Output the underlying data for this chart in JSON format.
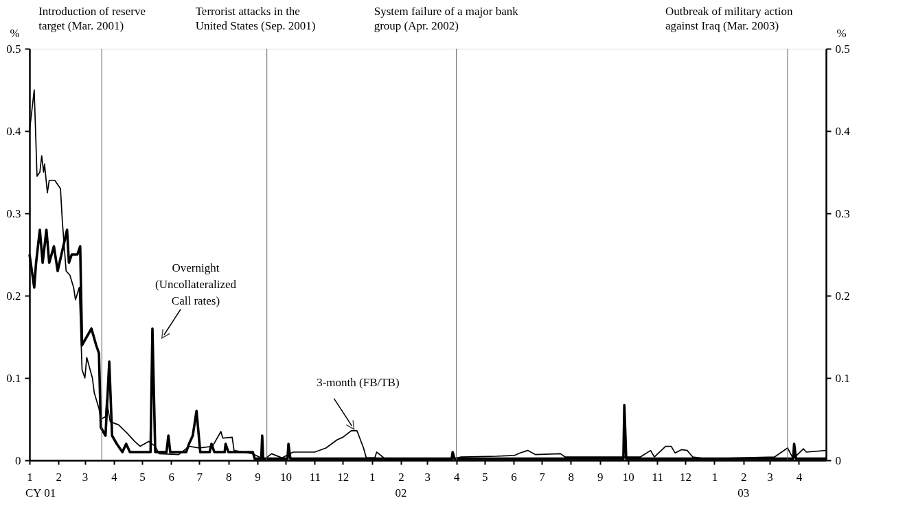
{
  "chart_data": {
    "type": "line",
    "ylabel": "%",
    "y2label": "%",
    "xlim": [
      "2001-01-01",
      "2003-04-30"
    ],
    "xticks": [
      {
        "value": "2001-01-01",
        "label": "1"
      },
      {
        "value": "2001-02-01",
        "label": "2"
      },
      {
        "value": "2001-03-01",
        "label": "3"
      },
      {
        "value": "2001-04-01",
        "label": "4"
      },
      {
        "value": "2001-05-01",
        "label": "5"
      },
      {
        "value": "2001-06-01",
        "label": "6"
      },
      {
        "value": "2001-07-01",
        "label": "7"
      },
      {
        "value": "2001-08-01",
        "label": "8"
      },
      {
        "value": "2001-09-01",
        "label": "9"
      },
      {
        "value": "2001-10-01",
        "label": "10"
      },
      {
        "value": "2001-11-01",
        "label": "11"
      },
      {
        "value": "2001-12-01",
        "label": "12"
      },
      {
        "value": "2002-01-01",
        "label": "1"
      },
      {
        "value": "2002-02-01",
        "label": "2"
      },
      {
        "value": "2002-03-01",
        "label": "3"
      },
      {
        "value": "2002-04-01",
        "label": "4"
      },
      {
        "value": "2002-05-01",
        "label": "5"
      },
      {
        "value": "2002-06-01",
        "label": "6"
      },
      {
        "value": "2002-07-01",
        "label": "7"
      },
      {
        "value": "2002-08-01",
        "label": "8"
      },
      {
        "value": "2002-09-01",
        "label": "9"
      },
      {
        "value": "2002-10-01",
        "label": "10"
      },
      {
        "value": "2002-11-01",
        "label": "11"
      },
      {
        "value": "2002-12-01",
        "label": "12"
      },
      {
        "value": "2003-01-01",
        "label": "1"
      },
      {
        "value": "2003-02-01",
        "label": "2"
      },
      {
        "value": "2003-03-01",
        "label": "3"
      },
      {
        "value": "2003-04-01",
        "label": "4"
      }
    ],
    "ylim": [
      0,
      0.5
    ],
    "yticks": [
      0,
      0.1,
      0.2,
      0.3,
      0.4,
      0.5
    ],
    "y2lim": [
      0,
      0.5
    ],
    "y2ticks": [
      0,
      0.1,
      0.2,
      0.3,
      0.4,
      0.5
    ],
    "series": [
      {
        "color": "#000000",
        "x": [
          "2001-01-01",
          "2001-01-06",
          "2001-01-08",
          "2001-01-12",
          "2001-01-15",
          "2001-01-19",
          "2001-01-22",
          "2001-01-27",
          "2001-01-31",
          "2001-02-04",
          "2001-02-10",
          "2001-02-12",
          "2001-02-15",
          "2001-02-21",
          "2001-02-24",
          "2001-02-26",
          "2001-03-03",
          "2001-03-08",
          "2001-03-13",
          "2001-03-16",
          "2001-03-18",
          "2001-03-23",
          "2001-03-27",
          "2001-03-30",
          "2001-04-04",
          "2001-04-10",
          "2001-04-14",
          "2001-04-18",
          "2001-04-29",
          "2001-05-10",
          "2001-05-12",
          "2001-05-15",
          "2001-05-27",
          "2001-05-29",
          "2001-05-31",
          "2001-06-17",
          "2001-06-20",
          "2001-06-24",
          "2001-06-28",
          "2001-07-02",
          "2001-07-12",
          "2001-07-14",
          "2001-07-17",
          "2001-07-28",
          "2001-07-29",
          "2001-08-01",
          "2001-08-27",
          "2001-08-29",
          "2001-09-05",
          "2001-09-06",
          "2001-09-07",
          "2001-10-03",
          "2001-10-04",
          "2001-10-06",
          "2002-03-27",
          "2002-03-28",
          "2002-03-30",
          "2002-09-26",
          "2002-09-27",
          "2002-09-29",
          "2003-03-26",
          "2003-03-27",
          "2003-03-29",
          "2003-04-30"
        ],
        "values": [
          0.25,
          0.21,
          0.24,
          0.28,
          0.24,
          0.28,
          0.24,
          0.26,
          0.23,
          0.25,
          0.28,
          0.24,
          0.25,
          0.25,
          0.26,
          0.14,
          0.15,
          0.16,
          0.14,
          0.13,
          0.04,
          0.03,
          0.12,
          0.03,
          0.02,
          0.01,
          0.02,
          0.01,
          0.01,
          0.01,
          0.16,
          0.01,
          0.01,
          0.03,
          0.01,
          0.01,
          0.02,
          0.03,
          0.06,
          0.01,
          0.01,
          0.02,
          0.01,
          0.01,
          0.02,
          0.01,
          0.01,
          0.002,
          0.002,
          0.03,
          0.002,
          0.002,
          0.02,
          0.002,
          0.002,
          0.01,
          0.002,
          0.002,
          0.067,
          0.002,
          0.002,
          0.02,
          0.002,
          0.002
        ]
      },
      {
        "color": "#000000",
        "x": [
          "2001-01-01",
          "2001-01-06",
          "2001-01-09",
          "2001-01-12",
          "2001-01-14",
          "2001-01-16",
          "2001-01-17",
          "2001-01-20",
          "2001-01-22",
          "2001-01-28",
          "2001-02-03",
          "2001-02-05",
          "2001-02-09",
          "2001-02-13",
          "2001-02-17",
          "2001-02-19",
          "2001-02-23",
          "2001-02-26",
          "2001-03-01",
          "2001-03-03",
          "2001-03-09",
          "2001-03-11",
          "2001-03-16",
          "2001-03-18",
          "2001-03-23",
          "2001-03-24",
          "2001-03-28",
          "2001-04-06",
          "2001-04-15",
          "2001-04-23",
          "2001-04-29",
          "2001-05-08",
          "2001-05-15",
          "2001-05-19",
          "2001-06-09",
          "2001-06-20",
          "2001-07-01",
          "2001-07-15",
          "2001-07-24",
          "2001-07-26",
          "2001-08-05",
          "2001-08-07",
          "2001-08-27",
          "2001-09-08",
          "2001-09-16",
          "2001-09-27",
          "2001-10-09",
          "2001-11-01",
          "2001-11-13",
          "2001-11-25",
          "2001-12-01",
          "2001-12-10",
          "2001-12-16",
          "2001-12-23",
          "2001-12-26",
          "2002-01-04",
          "2002-01-06",
          "2002-01-16",
          "2002-03-25",
          "2002-04-06",
          "2002-05-14",
          "2002-06-02",
          "2002-06-08",
          "2002-06-16",
          "2002-06-24",
          "2002-07-21",
          "2002-07-26",
          "2002-10-14",
          "2002-10-25",
          "2002-10-29",
          "2002-11-10",
          "2002-11-16",
          "2002-11-20",
          "2002-11-27",
          "2002-12-03",
          "2002-12-09",
          "2002-12-24",
          "2003-03-06",
          "2003-03-20",
          "2003-03-26",
          "2003-04-06",
          "2003-04-09",
          "2003-04-30"
        ],
        "values": [
          0.4,
          0.45,
          0.345,
          0.35,
          0.37,
          0.35,
          0.36,
          0.325,
          0.34,
          0.34,
          0.33,
          0.29,
          0.23,
          0.225,
          0.21,
          0.195,
          0.21,
          0.11,
          0.1,
          0.125,
          0.1,
          0.082,
          0.063,
          0.05,
          0.053,
          0.073,
          0.047,
          0.043,
          0.033,
          0.023,
          0.017,
          0.023,
          0.017,
          0.008,
          0.007,
          0.017,
          0.015,
          0.017,
          0.035,
          0.027,
          0.028,
          0.012,
          0.008,
          0.001,
          0.008,
          0.003,
          0.01,
          0.01,
          0.015,
          0.025,
          0.028,
          0.036,
          0.036,
          0.015,
          0.003,
          0.003,
          0.01,
          0.001,
          0.001,
          0.004,
          0.005,
          0.006,
          0.009,
          0.012,
          0.007,
          0.008,
          0.004,
          0.004,
          0.012,
          0.004,
          0.017,
          0.017,
          0.009,
          0.013,
          0.012,
          0.004,
          0.002,
          0.004,
          0.015,
          0.002,
          0.014,
          0.01,
          0.012
        ]
      }
    ],
    "ref_lines": [
      {
        "axis": "x",
        "value": "2001-03-19",
        "label": "Introduction of reserve\ntarget  (Mar. 2001)",
        "color": "#606060"
      },
      {
        "axis": "x",
        "value": "2001-09-11",
        "label": "Terrorist attacks in the\nUnited States  (Sep. 2001)",
        "color": "#606060"
      },
      {
        "axis": "x",
        "value": "2002-04-01",
        "label": "System failure of a major bank\ngroup  (Apr. 2002)",
        "color": "#606060"
      },
      {
        "axis": "x",
        "value": "2003-03-20",
        "label": "Outbreak of  military action\nagainst Iraq (Mar. 2003)",
        "color": "#606060"
      }
    ],
    "annotations": [
      {
        "text": "Overnight\n(Uncollateralized\nCall rates)",
        "x": "2001-05-12",
        "y": 0.16
      },
      {
        "text": "3-month  (FB/TB)",
        "x": "2001-12-12",
        "y": 0.036
      },
      "CY  01",
      "02",
      "03"
    ]
  }
}
